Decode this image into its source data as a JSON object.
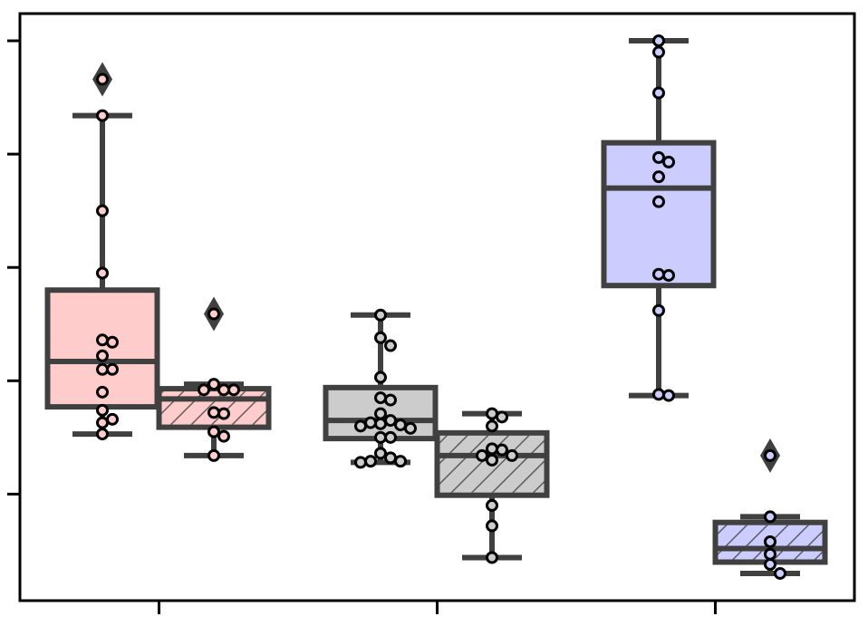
{
  "chart_data": {
    "type": "box",
    "categories": [
      null,
      null,
      null
    ],
    "colors": [
      "#ffcccc",
      "#cccccc",
      "#ccccff"
    ],
    "edge_color": "#404040",
    "ylim": [
      0.06,
      5.24
    ],
    "yticks": [
      1,
      2,
      3,
      4,
      5
    ],
    "series": [
      {
        "hatched": false,
        "boxes": [
          {
            "whislo": 1.53,
            "q1": 1.77,
            "med": 2.17,
            "q3": 2.8,
            "whishi": 4.34,
            "fliers": [
              4.66
            ],
            "points": [
              4.66,
              4.34,
              3.5,
              2.95,
              2.36,
              2.34,
              2.22,
              2.1,
              2.1,
              1.9,
              1.74,
              1.66,
              1.63,
              1.53
            ]
          },
          {
            "whislo": 1.28,
            "q1": 1.49,
            "med": 1.65,
            "q3": 1.94,
            "whishi": 2.58,
            "fliers": [],
            "points": [
              2.58,
              2.38,
              2.31,
              2.03,
              1.85,
              1.83,
              1.71,
              1.65,
              1.63,
              1.62,
              1.61,
              1.6,
              1.58,
              1.5,
              1.5,
              1.36,
              1.32,
              1.29,
              1.29,
              1.28
            ]
          },
          {
            "whislo": 1.87,
            "q1": 2.84,
            "med": 3.7,
            "q3": 4.1,
            "whishi": 5.0,
            "fliers": [],
            "points": [
              5.0,
              4.9,
              4.54,
              3.97,
              3.93,
              3.8,
              3.58,
              2.94,
              2.93,
              2.62,
              1.88,
              1.87
            ]
          }
        ]
      },
      {
        "hatched": true,
        "boxes": [
          {
            "whislo": 1.34,
            "q1": 1.59,
            "med": 1.84,
            "q3": 1.93,
            "whishi": 1.97,
            "fliers": [
              2.59
            ],
            "points": [
              2.59,
              1.97,
              1.92,
              1.92,
              1.92,
              1.72,
              1.71,
              1.55,
              1.51,
              1.34
            ]
          },
          {
            "whislo": 0.44,
            "q1": 0.99,
            "med": 1.34,
            "q3": 1.54,
            "whishi": 1.71,
            "fliers": [],
            "points": [
              1.71,
              1.68,
              1.6,
              1.4,
              1.39,
              1.34,
              1.34,
              1.3,
              0.9,
              0.72,
              0.44
            ]
          },
          {
            "whislo": 0.3,
            "q1": 0.4,
            "med": 0.52,
            "q3": 0.75,
            "whishi": 0.8,
            "fliers": [
              1.34
            ],
            "points": [
              1.34,
              0.8,
              0.58,
              0.47,
              0.38,
              0.3
            ]
          }
        ]
      }
    ]
  }
}
